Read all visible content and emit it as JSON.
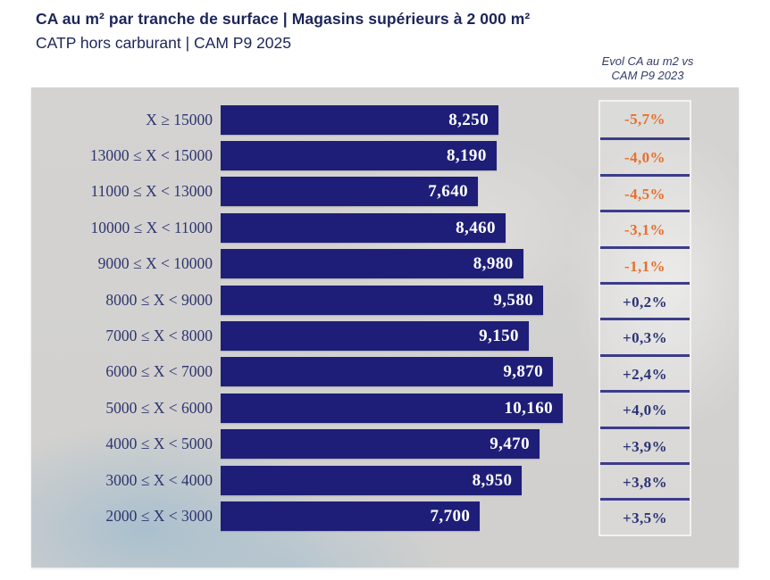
{
  "header": {
    "title": "CA au m² par tranche de surface | Magasins supérieurs à 2 000 m²",
    "subtitle": "CATP hors carburant | CAM P9 2025",
    "annotation": {
      "line1": "Evol CA au m2 vs",
      "line2": "CAM P9 2023"
    }
  },
  "chart_data": {
    "type": "bar",
    "orientation": "horizontal",
    "title": "CA au m² par tranche de surface | Magasins supérieurs à 2 000 m²",
    "subtitle": "CATP hors carburant | CAM P9 2025",
    "secondary_column_header": "Evol CA au m2 vs CAM P9 2023",
    "value_axis_max": 10160,
    "grid": false,
    "categories": [
      "X ≥ 15000",
      "13000 ≤ X < 15000",
      "11000 ≤ X < 13000",
      "10000 ≤ X < 11000",
      "9000 ≤ X < 10000",
      "8000 ≤ X < 9000",
      "7000 ≤ X < 8000",
      "6000 ≤ X < 7000",
      "5000 ≤ X < 6000",
      "4000 ≤ X < 5000",
      "3000 ≤ X < 4000",
      "2000 ≤ X < 3000"
    ],
    "values": [
      8250,
      8190,
      7640,
      8460,
      8980,
      9580,
      9150,
      9870,
      10160,
      9470,
      8950,
      7700
    ],
    "evolution_pct": [
      -5.7,
      -4.0,
      -4.5,
      -3.1,
      -1.1,
      0.2,
      0.3,
      2.4,
      4.0,
      3.9,
      3.8,
      3.5
    ],
    "rows": [
      {
        "label": "X ≥ 15000",
        "value": 8250,
        "value_label": "8,250",
        "evolution": "-5,7%",
        "evolution_value": -5.7
      },
      {
        "label": "13000 ≤ X < 15000",
        "value": 8190,
        "value_label": "8,190",
        "evolution": "-4,0%",
        "evolution_value": -4.0
      },
      {
        "label": "11000 ≤ X < 13000",
        "value": 7640,
        "value_label": "7,640",
        "evolution": "-4,5%",
        "evolution_value": -4.5
      },
      {
        "label": "10000 ≤ X < 11000",
        "value": 8460,
        "value_label": "8,460",
        "evolution": "-3,1%",
        "evolution_value": -3.1
      },
      {
        "label": "9000 ≤ X < 10000",
        "value": 8980,
        "value_label": "8,980",
        "evolution": "-1,1%",
        "evolution_value": -1.1
      },
      {
        "label": "8000 ≤ X < 9000",
        "value": 9580,
        "value_label": "9,580",
        "evolution": "+0,2%",
        "evolution_value": 0.2
      },
      {
        "label": "7000 ≤ X < 8000",
        "value": 9150,
        "value_label": "9,150",
        "evolution": "+0,3%",
        "evolution_value": 0.3
      },
      {
        "label": "6000 ≤ X < 7000",
        "value": 9870,
        "value_label": "9,870",
        "evolution": "+2,4%",
        "evolution_value": 2.4
      },
      {
        "label": "5000 ≤ X < 6000",
        "value": 10160,
        "value_label": "10,160",
        "evolution": "+4,0%",
        "evolution_value": 4.0
      },
      {
        "label": "4000 ≤ X < 5000",
        "value": 9470,
        "value_label": "9,470",
        "evolution": "+3,9%",
        "evolution_value": 3.9
      },
      {
        "label": "3000 ≤ X < 4000",
        "value": 8950,
        "value_label": "8,950",
        "evolution": "+3,8%",
        "evolution_value": 3.8
      },
      {
        "label": "2000 ≤ X < 3000",
        "value": 7700,
        "value_label": "7,700",
        "evolution": "+3,5%",
        "evolution_value": 3.5
      }
    ],
    "colors": {
      "bar": "#1e1e78",
      "evolution_negative": "#e7702d",
      "evolution_positive": "#2b3274",
      "panel_background": "#d3d2d0",
      "bar_value_text": "#ffffff",
      "category_text": "#2e356f",
      "title_text": "#1c2558"
    }
  }
}
